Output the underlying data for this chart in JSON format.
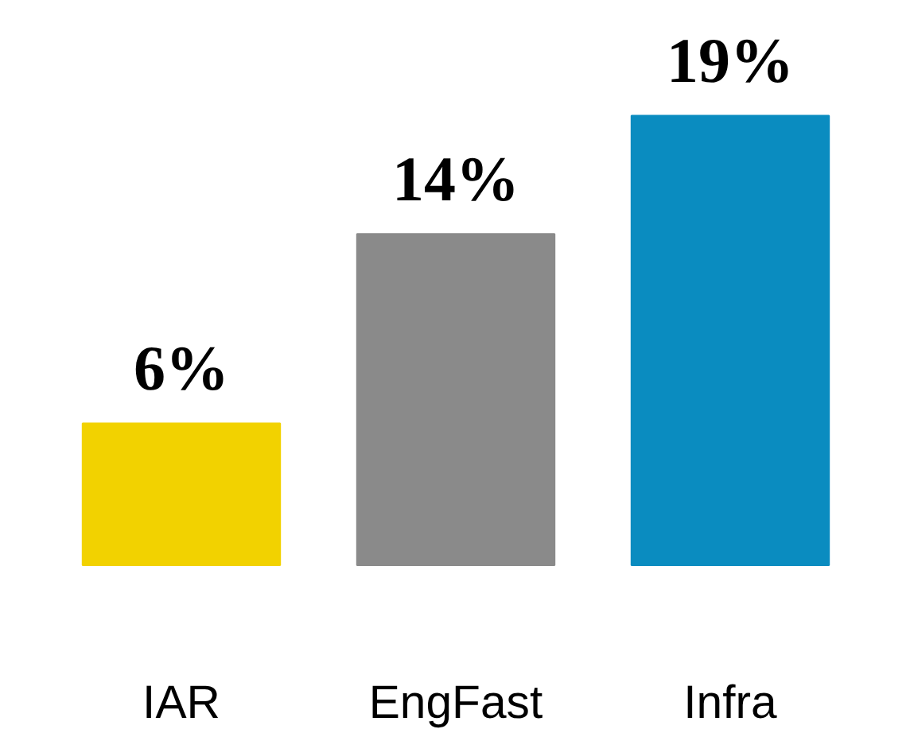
{
  "chart_data": {
    "type": "bar",
    "categories": [
      "IAR",
      "EngFast",
      "Infra"
    ],
    "values": [
      6,
      14,
      19
    ],
    "colors": [
      "#f2d200",
      "#8a8a8a",
      "#0a8cc0"
    ],
    "value_labels": [
      "6%",
      "14%",
      "19%"
    ]
  }
}
